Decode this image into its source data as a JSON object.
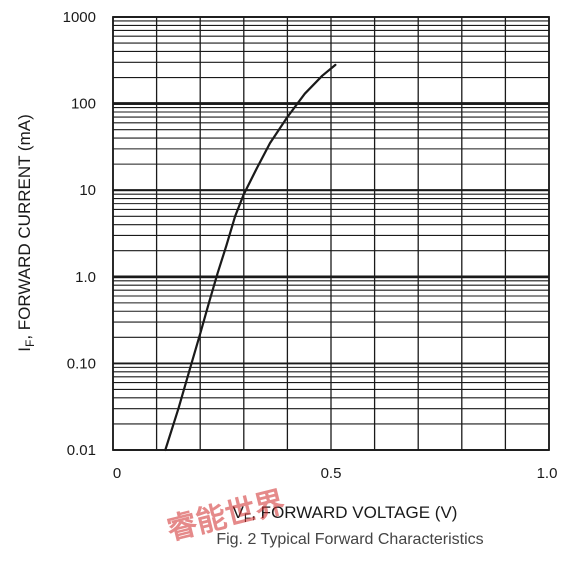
{
  "chart_data": {
    "type": "line",
    "title": "Fig. 2  Typical Forward Characteristics",
    "x_label_main": "V",
    "x_label_sub": "F",
    "x_label_rest": ", FORWARD VOLTAGE (V)",
    "y_label_main": "I",
    "y_label_sub": "F",
    "y_label_rest": ", FORWARD CURRENT (mA)",
    "x_scale": "linear",
    "y_scale": "log",
    "xlim": [
      0,
      1.0
    ],
    "ylim": [
      0.01,
      1000
    ],
    "x_ticks": [
      0,
      0.5,
      1.0
    ],
    "x_tick_labels": [
      "0",
      "0.5",
      "1.0"
    ],
    "y_ticks": [
      0.01,
      0.1,
      1,
      10,
      100,
      1000
    ],
    "y_tick_labels": [
      "0.01",
      "0.10",
      "1.0",
      "10",
      "100",
      "1000"
    ],
    "grid": true,
    "series": [
      {
        "x": [
          0.12,
          0.15,
          0.18,
          0.2,
          0.22,
          0.24,
          0.26,
          0.28,
          0.3,
          0.33,
          0.36,
          0.4,
          0.44,
          0.48,
          0.51
        ],
        "y": [
          0.01,
          0.03,
          0.1,
          0.22,
          0.5,
          1.1,
          2.3,
          5,
          9,
          18,
          35,
          70,
          130,
          210,
          280
        ]
      }
    ]
  },
  "watermark": "睿能世界",
  "colors": {
    "line": "#1a1a1a",
    "grid": "#1a1a1a",
    "watermark": "#d12b2b"
  }
}
